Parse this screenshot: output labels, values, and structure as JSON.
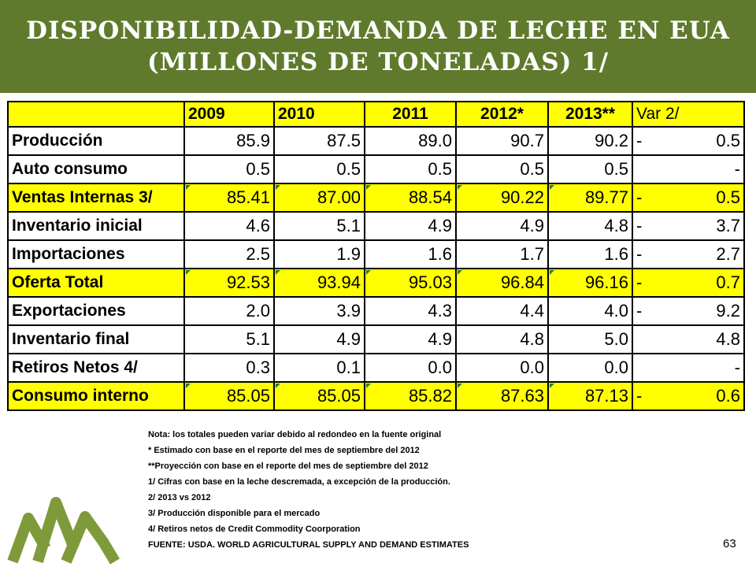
{
  "header": {
    "title_line1": "DISPONIBILIDAD-DEMANDA DE LECHE EN EUA",
    "title_line2": "(MILLONES DE TONELADAS) 1/"
  },
  "table": {
    "columns": [
      "",
      "2009",
      "2010",
      "2011",
      "2012*",
      "2013**",
      "Var 2/"
    ],
    "rows": [
      {
        "label": "Producción",
        "values": [
          "85.9",
          "87.5",
          "89.0",
          "90.7",
          "90.2"
        ],
        "var_sign": "-",
        "var_value": "0.5",
        "highlight": false
      },
      {
        "label": "Auto consumo",
        "values": [
          "0.5",
          "0.5",
          "0.5",
          "0.5",
          "0.5"
        ],
        "var_sign": "",
        "var_value": "-",
        "highlight": false
      },
      {
        "label": "Ventas Internas 3/",
        "values": [
          "85.41",
          "87.00",
          "88.54",
          "90.22",
          "89.77"
        ],
        "var_sign": "-",
        "var_value": "0.5",
        "highlight": true
      },
      {
        "label": "Inventario inicial",
        "values": [
          "4.6",
          "5.1",
          "4.9",
          "4.9",
          "4.8"
        ],
        "var_sign": "-",
        "var_value": "3.7",
        "highlight": false
      },
      {
        "label": "Importaciones",
        "values": [
          "2.5",
          "1.9",
          "1.6",
          "1.7",
          "1.6"
        ],
        "var_sign": "-",
        "var_value": "2.7",
        "highlight": false
      },
      {
        "label": "Oferta Total",
        "values": [
          "92.53",
          "93.94",
          "95.03",
          "96.84",
          "96.16"
        ],
        "var_sign": "-",
        "var_value": "0.7",
        "highlight": true
      },
      {
        "label": "Exportaciones",
        "values": [
          "2.0",
          "3.9",
          "4.3",
          "4.4",
          "4.0"
        ],
        "var_sign": "-",
        "var_value": "9.2",
        "highlight": false
      },
      {
        "label": "Inventario final",
        "values": [
          "5.1",
          "4.9",
          "4.9",
          "4.8",
          "5.0"
        ],
        "var_sign": "",
        "var_value": "4.8",
        "highlight": false
      },
      {
        "label": "Retiros Netos 4/",
        "values": [
          "0.3",
          "0.1",
          "0.0",
          "0.0",
          "0.0"
        ],
        "var_sign": "",
        "var_value": "-",
        "highlight": false
      },
      {
        "label": "Consumo interno",
        "values": [
          "85.05",
          "85.05",
          "85.82",
          "87.63",
          "87.13"
        ],
        "var_sign": "-",
        "var_value": "0.6",
        "highlight": true
      }
    ]
  },
  "notes": [
    "Nota: los totales pueden variar debido al redondeo en la fuente original",
    "* Estimado con base en el reporte del mes de septiembre del 2012",
    "**Proyección con base en el reporte del mes de septiembre del 2012",
    "1/ Cifras con base en la leche descremada, a excepción de la producción.",
    "2/ 2013 vs 2012",
    "3/ Producción disponible para el mercado",
    "4/ Retiros netos de Credit Commodity Coorporation",
    "FUENTE: USDA. WORLD AGRICULTURAL  SUPPLY AND DEMAND ESTIMATES"
  ],
  "page_number": "63",
  "colors": {
    "header_bg": "#5f7a2c",
    "highlight": "#ffff00",
    "logo_green": "#7f9a3a"
  },
  "logo": {
    "icon": "mountains-logo-icon"
  }
}
